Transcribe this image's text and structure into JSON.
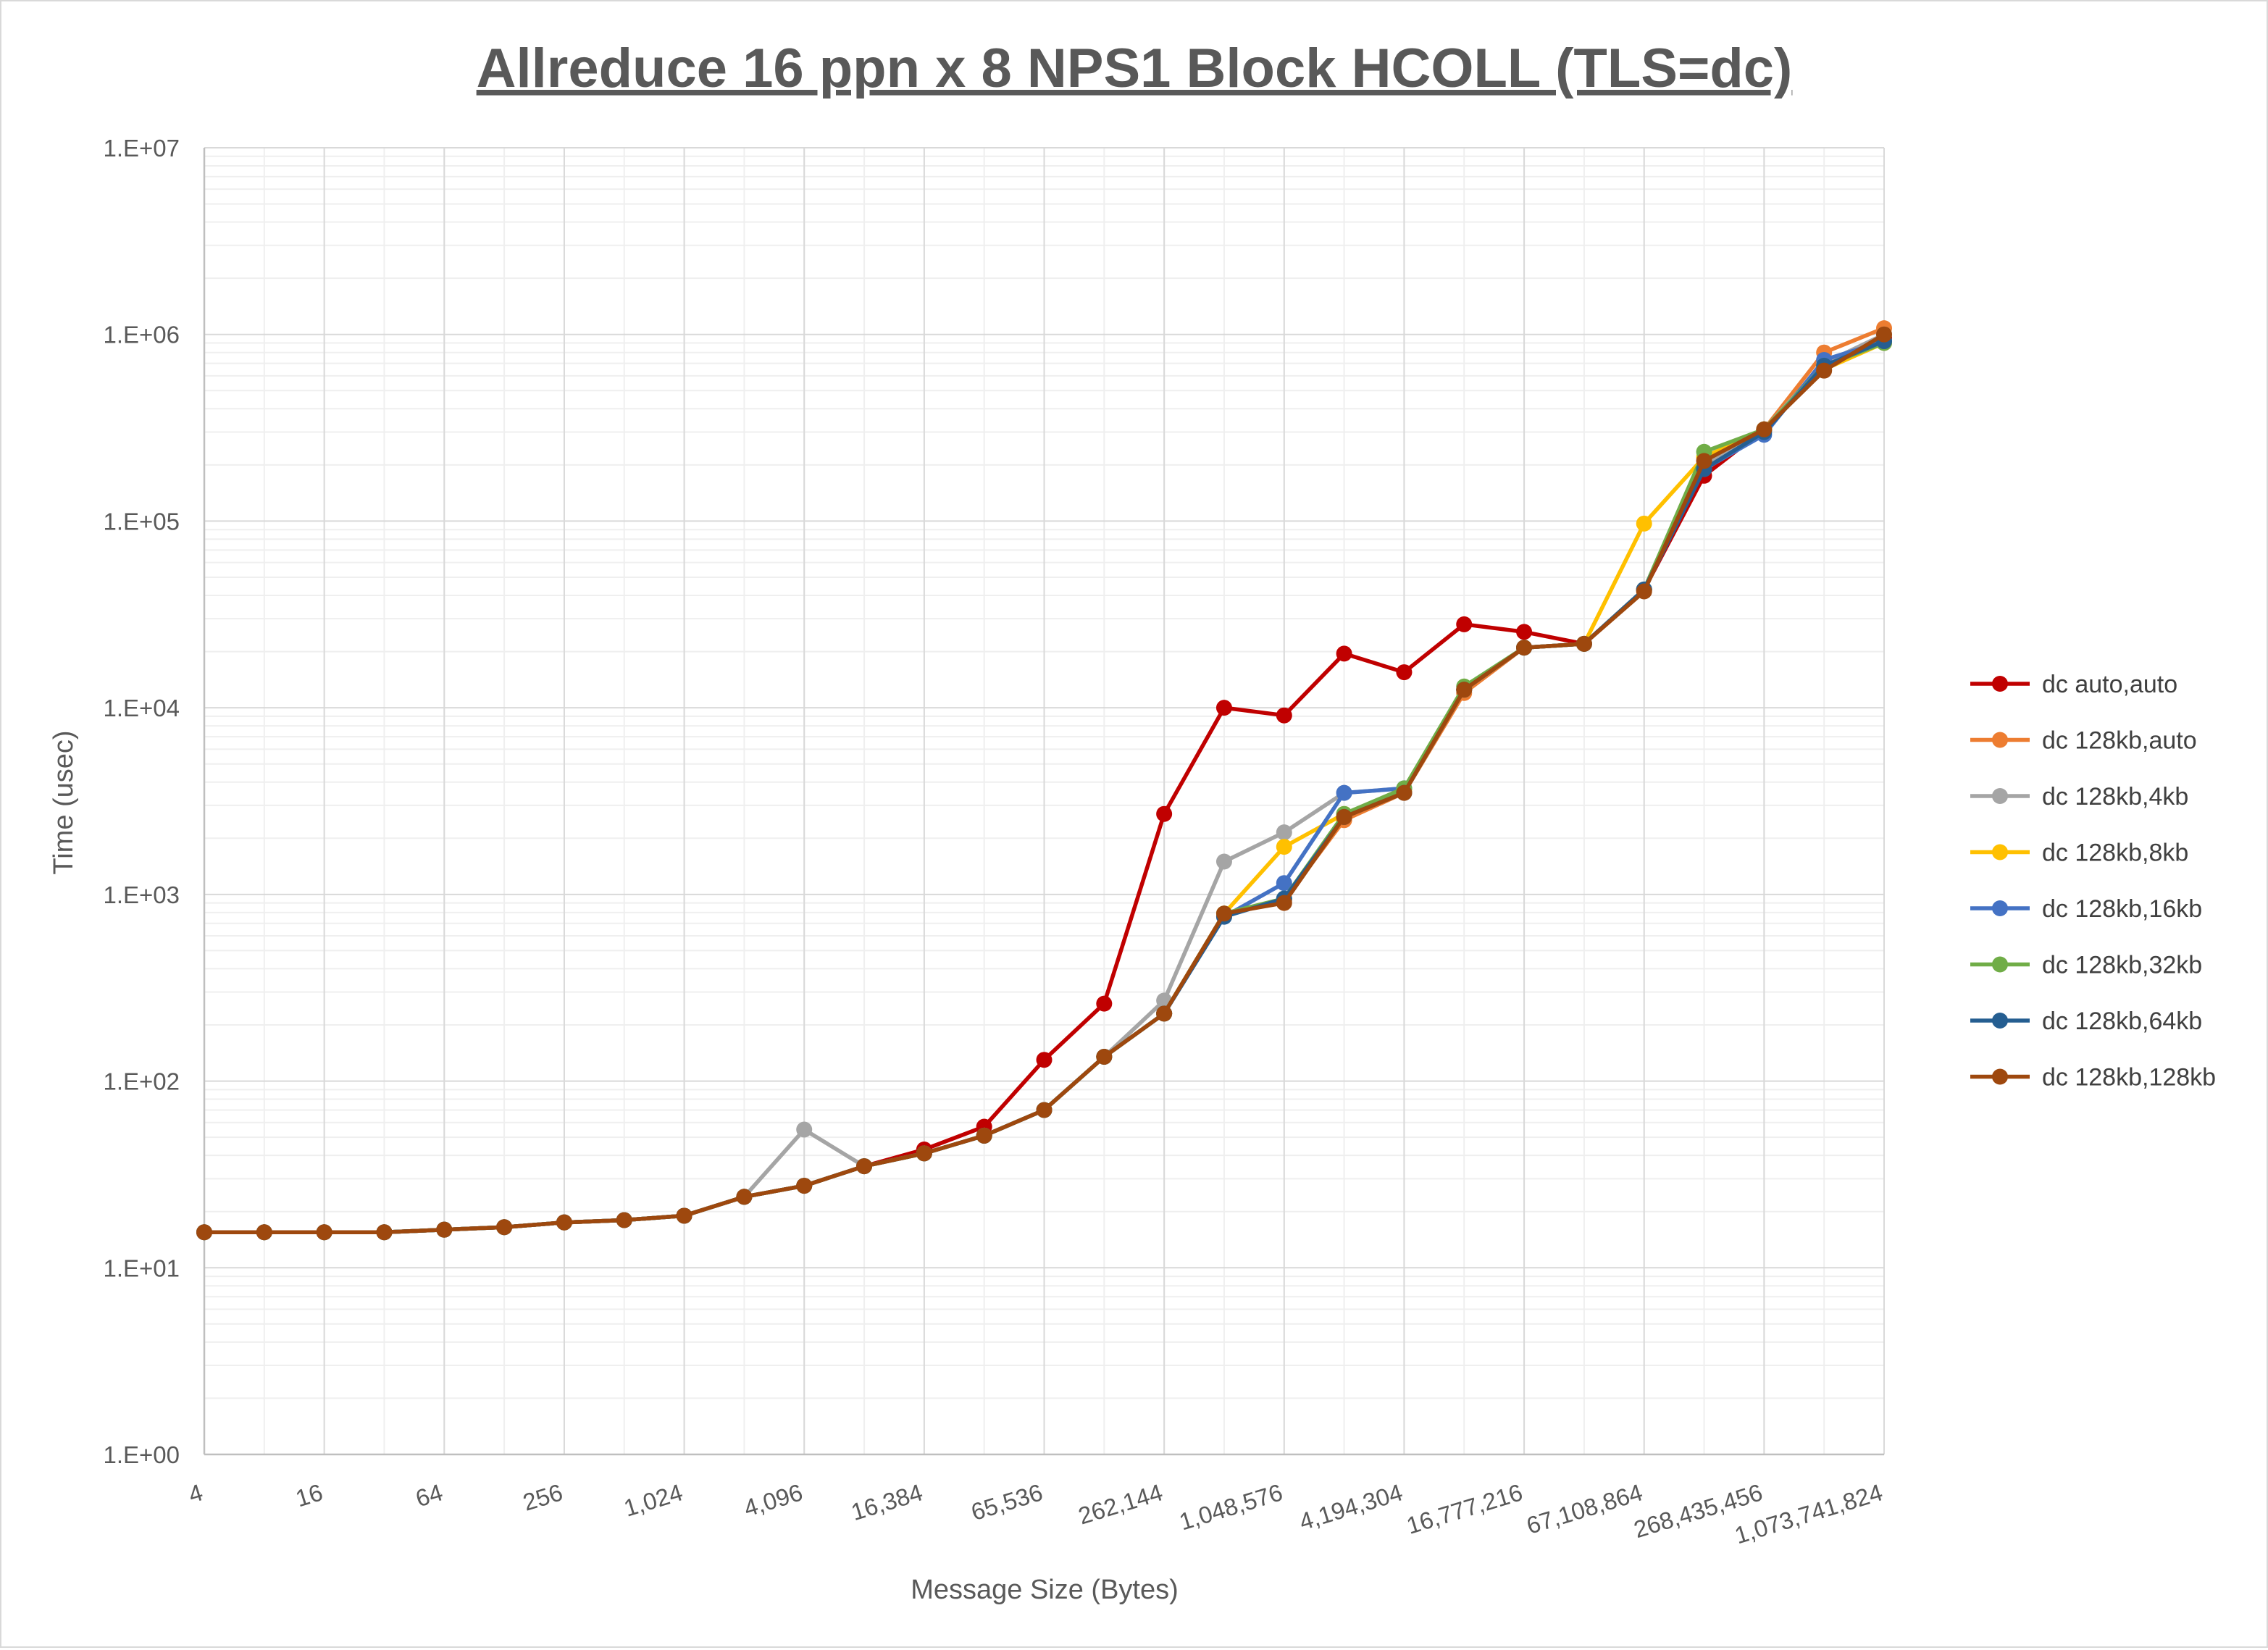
{
  "chart_data": {
    "type": "line",
    "title": "Allreduce 16 ppn x 8 NPS1 Block HCOLL (TLS=dc)",
    "xlabel": "Message Size (Bytes)",
    "ylabel": "Time (usec)",
    "x_scale": "log2",
    "y_scale": "log10",
    "ylim": [
      1,
      10000000
    ],
    "y_ticks": [
      "1.E+00",
      "1.E+01",
      "1.E+02",
      "1.E+03",
      "1.E+04",
      "1.E+05",
      "1.E+06",
      "1.E+07"
    ],
    "x_tick_labels": [
      "4",
      "16",
      "64",
      "256",
      "1,024",
      "4,096",
      "16,384",
      "65,536",
      "262,144",
      "1,048,576",
      "4,194,304",
      "16,777,216",
      "67,108,864",
      "268,435,456",
      "1,073,741,824"
    ],
    "x": [
      4,
      8,
      16,
      32,
      64,
      128,
      256,
      512,
      1024,
      2048,
      4096,
      8192,
      16384,
      32768,
      65536,
      131072,
      262144,
      524288,
      1048576,
      2097152,
      4194304,
      8388608,
      16777216,
      33554432,
      67108864,
      134217728,
      268435456,
      536870912,
      1073741824
    ],
    "grid": true,
    "legend_position": "right",
    "series": [
      {
        "name": "dc auto,auto",
        "color": "#c00000",
        "values": [
          15.5,
          15.5,
          15.5,
          15.5,
          16,
          16.5,
          17.5,
          18,
          19,
          24,
          27.5,
          35,
          43,
          57,
          130,
          260,
          2700,
          10000,
          9100,
          19500,
          15500,
          28000,
          25500,
          22000,
          43000,
          175000,
          310000,
          700000,
          960000
        ]
      },
      {
        "name": "dc 128kb,auto",
        "color": "#ed7d31",
        "values": [
          15.5,
          15.5,
          15.5,
          15.5,
          16,
          16.5,
          17.5,
          18,
          19,
          24,
          27.5,
          35,
          41,
          51,
          70,
          135,
          230,
          790,
          930,
          2500,
          3500,
          12000,
          21000,
          22000,
          43000,
          200000,
          310000,
          800000,
          1080000
        ]
      },
      {
        "name": "dc 128kb,4kb",
        "color": "#a5a5a5",
        "values": [
          15.5,
          15.5,
          15.5,
          15.5,
          16,
          16.5,
          17.5,
          18,
          19,
          24,
          55,
          35,
          41,
          51,
          70,
          135,
          270,
          1500,
          2150,
          3500,
          3700,
          12500,
          21000,
          22000,
          43000,
          200000,
          310000,
          700000,
          1000000
        ]
      },
      {
        "name": "dc 128kb,8kb",
        "color": "#ffc000",
        "values": [
          15.5,
          15.5,
          15.5,
          15.5,
          16,
          16.5,
          17.5,
          18,
          19,
          24,
          27.5,
          35,
          41,
          51,
          70,
          135,
          230,
          790,
          1800,
          2700,
          3600,
          12500,
          21000,
          22000,
          97000,
          220000,
          310000,
          650000,
          900000
        ]
      },
      {
        "name": "dc 128kb,16kb",
        "color": "#4472c4",
        "values": [
          15.5,
          15.5,
          15.5,
          15.5,
          16,
          16.5,
          17.5,
          18,
          19,
          24,
          27.5,
          35,
          41,
          51,
          70,
          135,
          230,
          760,
          1150,
          3500,
          3700,
          12500,
          21000,
          22000,
          43000,
          190000,
          290000,
          730000,
          920000
        ]
      },
      {
        "name": "dc 128kb,32kb",
        "color": "#70ad47",
        "values": [
          15.5,
          15.5,
          15.5,
          15.5,
          16,
          16.5,
          17.5,
          18,
          19,
          24,
          27.5,
          35,
          41,
          51,
          70,
          135,
          230,
          790,
          950,
          2700,
          3700,
          13000,
          21000,
          22000,
          43000,
          235000,
          310000,
          680000,
          900000
        ]
      },
      {
        "name": "dc 128kb,64kb",
        "color": "#255e91",
        "values": [
          15.5,
          15.5,
          15.5,
          15.5,
          16,
          16.5,
          17.5,
          18,
          19,
          24,
          27.5,
          35,
          41,
          51,
          70,
          135,
          230,
          760,
          950,
          2600,
          3500,
          12500,
          21000,
          22000,
          43000,
          190000,
          300000,
          680000,
          920000
        ]
      },
      {
        "name": "dc 128kb,128kb",
        "color": "#9e480e",
        "values": [
          15.5,
          15.5,
          15.5,
          15.5,
          16,
          16.5,
          17.5,
          18,
          19,
          24,
          27.5,
          35,
          41,
          51,
          70,
          135,
          230,
          790,
          900,
          2600,
          3500,
          12500,
          21000,
          22000,
          42000,
          210000,
          310000,
          640000,
          1000000
        ]
      }
    ]
  }
}
